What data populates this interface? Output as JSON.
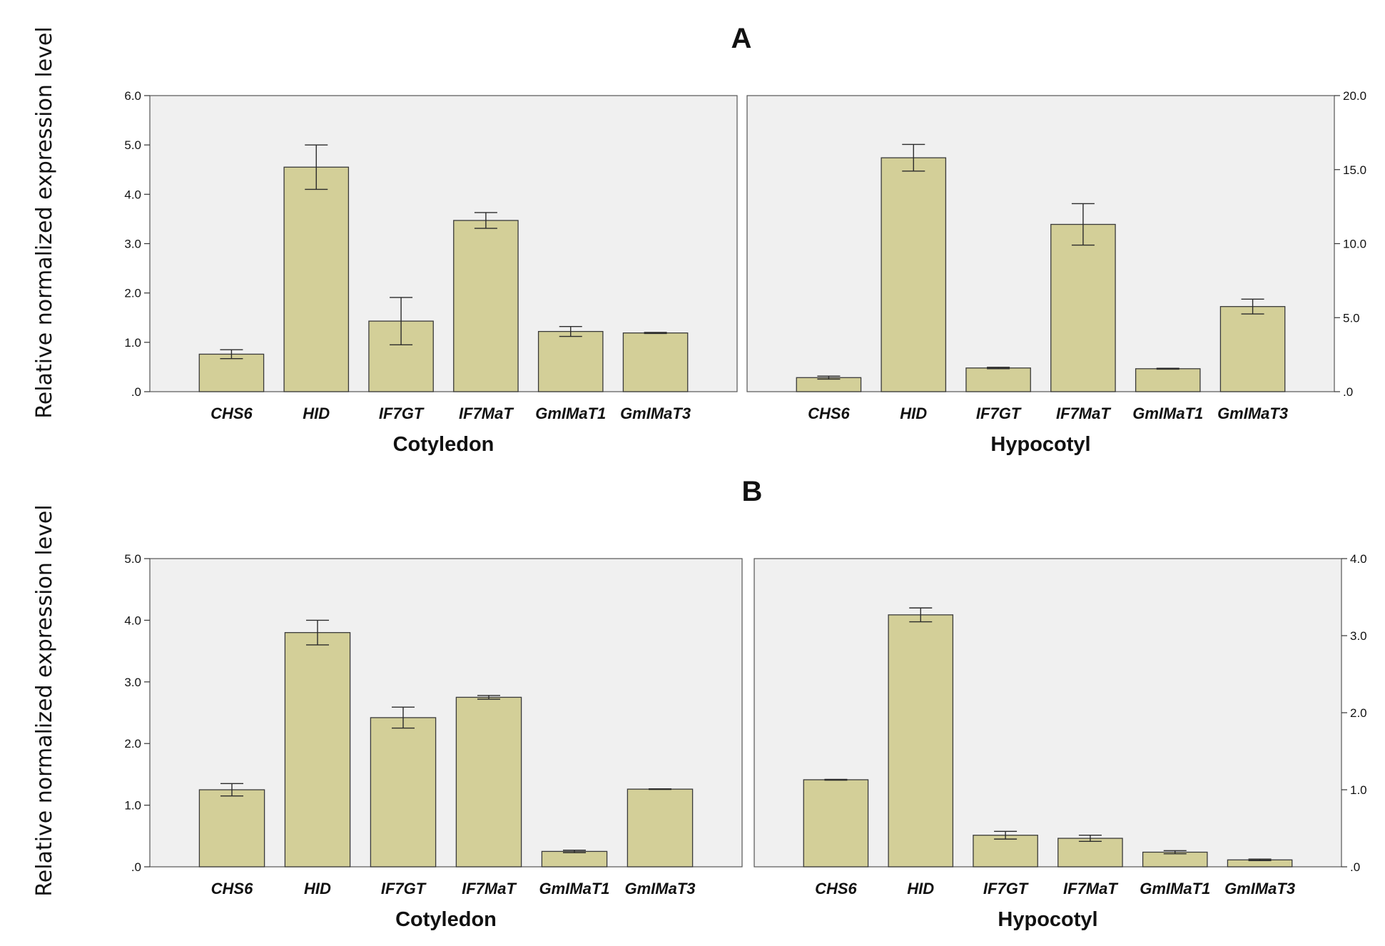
{
  "panels": [
    {
      "label": "A",
      "ylabel": "Relative normalized expression level",
      "charts": [
        {
          "group": "Cotyledon",
          "type": "bar",
          "categories": [
            "CHS6",
            "HID",
            "IF7GT",
            "IF7MaT",
            "GmIMaT1",
            "GmIMaT3"
          ],
          "values": [
            0.76,
            4.55,
            1.43,
            3.47,
            1.22,
            1.19
          ],
          "errors": [
            0.09,
            0.45,
            0.48,
            0.16,
            0.1,
            0.01
          ],
          "ylim": [
            0,
            6
          ],
          "ticks": [
            0,
            1,
            2,
            3,
            4,
            5,
            6
          ],
          "tick_labels": [
            ".0",
            "1.0",
            "2.0",
            "3.0",
            "4.0",
            "5.0",
            "6.0"
          ],
          "axis_side": "left"
        },
        {
          "group": "Hypocotyl",
          "type": "bar",
          "categories": [
            "CHS6",
            "HID",
            "IF7GT",
            "IF7MaT",
            "GmIMaT1",
            "GmIMaT3"
          ],
          "values": [
            0.95,
            15.8,
            1.6,
            11.3,
            1.55,
            5.75
          ],
          "errors": [
            0.1,
            0.9,
            0.05,
            1.4,
            0.03,
            0.5
          ],
          "ylim": [
            0,
            20
          ],
          "ticks": [
            0,
            5,
            10,
            15,
            20
          ],
          "tick_labels": [
            ".0",
            "5.0",
            "10.0",
            "15.0",
            "20.0"
          ],
          "axis_side": "right"
        }
      ]
    },
    {
      "label": "B",
      "ylabel": "Relative normalized expression level",
      "charts": [
        {
          "group": "Cotyledon",
          "type": "bar",
          "categories": [
            "CHS6",
            "HID",
            "IF7GT",
            "IF7MaT",
            "GmIMaT1",
            "GmIMaT3"
          ],
          "values": [
            1.25,
            3.8,
            2.42,
            2.75,
            0.25,
            1.26
          ],
          "errors": [
            0.1,
            0.2,
            0.17,
            0.03,
            0.02,
            0.005
          ],
          "ylim": [
            0,
            5
          ],
          "ticks": [
            0,
            1,
            2,
            3,
            4,
            5
          ],
          "tick_labels": [
            ".0",
            "1.0",
            "2.0",
            "3.0",
            "4.0",
            "5.0"
          ],
          "axis_side": "left"
        },
        {
          "group": "Hypocotyl",
          "type": "bar",
          "categories": [
            "CHS6",
            "HID",
            "IF7GT",
            "IF7MaT",
            "GmIMaT1",
            "GmIMaT3"
          ],
          "values": [
            1.13,
            3.27,
            0.41,
            0.37,
            0.19,
            0.09
          ],
          "errors": [
            0.005,
            0.09,
            0.05,
            0.04,
            0.02,
            0.01
          ],
          "ylim": [
            0,
            4
          ],
          "ticks": [
            0,
            1,
            2,
            3,
            4
          ],
          "tick_labels": [
            ".0",
            "1.0",
            "2.0",
            "3.0",
            "4.0"
          ],
          "axis_side": "right"
        }
      ]
    }
  ],
  "colors": {
    "bar": "#d3cf98",
    "plot_bg": "#f0f0f0"
  }
}
